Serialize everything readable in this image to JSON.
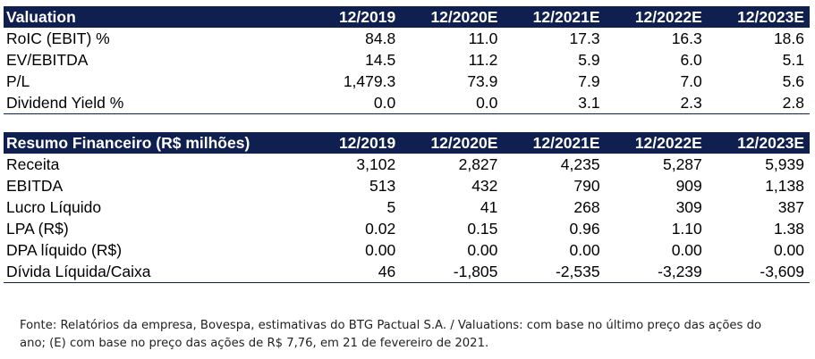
{
  "valuation": {
    "title": "Valuation",
    "columns": [
      "12/2019",
      "12/2020E",
      "12/2021E",
      "12/2022E",
      "12/2023E"
    ],
    "rows": [
      {
        "label": "RoIC (EBIT) %",
        "values": [
          "84.8",
          "11.0",
          "17.3",
          "16.3",
          "18.6"
        ]
      },
      {
        "label": "EV/EBITDA",
        "values": [
          "14.5",
          "11.2",
          "5.9",
          "6.0",
          "5.1"
        ]
      },
      {
        "label": "P/L",
        "values": [
          "1,479.3",
          "73.9",
          "7.9",
          "7.0",
          "5.6"
        ]
      },
      {
        "label": "Dividend Yield %",
        "values": [
          "0.0",
          "0.0",
          "3.1",
          "2.3",
          "2.8"
        ]
      }
    ]
  },
  "resumo": {
    "title": "Resumo Financeiro (R$ milhões)",
    "columns": [
      "12/2019",
      "12/2020E",
      "12/2021E",
      "12/2022E",
      "12/2023E"
    ],
    "rows": [
      {
        "label": "Receita",
        "values": [
          "3,102",
          "2,827",
          "4,235",
          "5,287",
          "5,939"
        ]
      },
      {
        "label": "EBITDA",
        "values": [
          "513",
          "432",
          "790",
          "909",
          "1,138"
        ]
      },
      {
        "label": "Lucro Líquido",
        "values": [
          "5",
          "41",
          "268",
          "309",
          "387"
        ]
      },
      {
        "label": "LPA (R$)",
        "values": [
          "0.02",
          "0.15",
          "0.96",
          "1.10",
          "1.38"
        ]
      },
      {
        "label": "DPA líquido (R$)",
        "values": [
          "0.00",
          "0.00",
          "0.00",
          "0.00",
          "0.00"
        ]
      },
      {
        "label": "Dívida Líquida/Caixa",
        "values": [
          "46",
          "-1,805",
          "-2,535",
          "-3,239",
          "-3,609"
        ]
      }
    ]
  },
  "footnote": {
    "line1": "Fonte: Relatórios da empresa, Bovespa, estimativas do BTG Pactual S.A. / Valuations: com base no último preço das ações do",
    "line2": "ano; (E) com base no preço das ações de R$ 7,76, em 21 de fevereiro de 2021."
  }
}
